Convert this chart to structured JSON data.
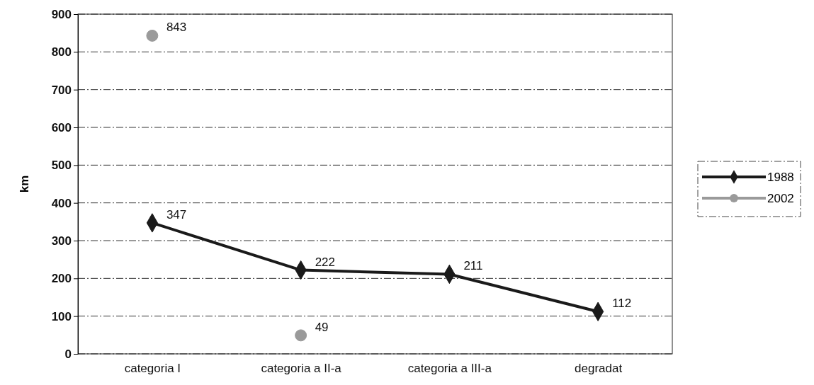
{
  "chart_data": {
    "type": "line",
    "ylabel": "km",
    "categories": [
      "categoria I",
      "categoria a II-a",
      "categoria a III-a",
      "degradat"
    ],
    "series": [
      {
        "name": "1988",
        "color": "#1a1a1a",
        "values": [
          347,
          222,
          211,
          112
        ],
        "marker": "diamond"
      },
      {
        "name": "2002",
        "type": "scatter",
        "color": "#9a9a9a",
        "values": [
          843,
          49,
          null,
          null
        ],
        "marker": "circle"
      }
    ],
    "ylim": [
      0,
      900
    ],
    "yticks": [
      0,
      100,
      200,
      300,
      400,
      500,
      600,
      700,
      800,
      900
    ],
    "grid": "y",
    "legend": "right",
    "data_labels": true
  }
}
